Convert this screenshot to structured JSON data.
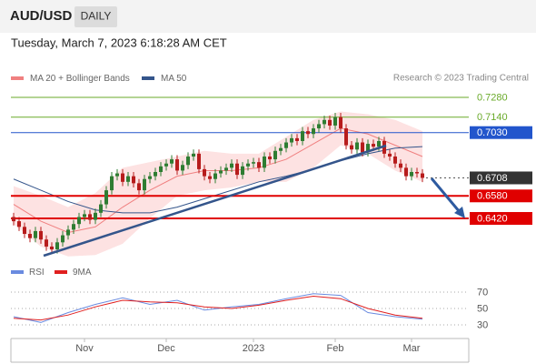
{
  "header": {
    "symbol": "AUD/USD",
    "timeframe": "DAILY",
    "timestamp": "Tuesday, March 7, 2023 6:18:28 AM CET"
  },
  "chart_data": [
    {
      "type": "candlestick",
      "credit": "Research © 2023 Trading Central",
      "xlim": [
        -0.5,
        83.5
      ],
      "ylim": [
        0.6142,
        0.7345
      ],
      "candles": {
        "up_color": "#2e7d32",
        "down_color": "#b71c1c",
        "open": [
          0.643,
          0.64,
          0.636,
          0.631,
          0.628,
          0.633,
          0.627,
          0.622,
          0.62,
          0.625,
          0.63,
          0.634,
          0.638,
          0.643,
          0.645,
          0.641,
          0.646,
          0.652,
          0.662,
          0.672,
          0.674,
          0.668,
          0.672,
          0.667,
          0.662,
          0.67,
          0.672,
          0.675,
          0.679,
          0.681,
          0.684,
          0.676,
          0.68,
          0.686,
          0.688,
          0.677,
          0.672,
          0.67,
          0.674,
          0.676,
          0.678,
          0.681,
          0.673,
          0.679,
          0.681,
          0.682,
          0.678,
          0.686,
          0.684,
          0.69,
          0.692,
          0.696,
          0.699,
          0.697,
          0.704,
          0.702,
          0.706,
          0.709,
          0.712,
          0.708,
          0.714,
          0.706,
          0.694,
          0.691,
          0.696,
          0.689,
          0.695,
          0.693,
          0.697,
          0.688,
          0.686,
          0.681,
          0.678,
          0.672,
          0.675,
          0.674
        ],
        "high": [
          0.646,
          0.643,
          0.639,
          0.634,
          0.636,
          0.636,
          0.63,
          0.625,
          0.628,
          0.633,
          0.637,
          0.641,
          0.646,
          0.648,
          0.648,
          0.649,
          0.655,
          0.665,
          0.675,
          0.677,
          0.677,
          0.675,
          0.675,
          0.67,
          0.673,
          0.675,
          0.678,
          0.682,
          0.684,
          0.687,
          0.687,
          0.683,
          0.689,
          0.691,
          0.691,
          0.68,
          0.675,
          0.677,
          0.679,
          0.681,
          0.684,
          0.684,
          0.682,
          0.684,
          0.685,
          0.685,
          0.689,
          0.689,
          0.693,
          0.695,
          0.699,
          0.702,
          0.702,
          0.707,
          0.707,
          0.709,
          0.712,
          0.715,
          0.715,
          0.717,
          0.717,
          0.709,
          0.697,
          0.699,
          0.699,
          0.698,
          0.698,
          0.7,
          0.7,
          0.691,
          0.689,
          0.684,
          0.681,
          0.678,
          0.678,
          0.677
        ],
        "low": [
          0.637,
          0.633,
          0.628,
          0.625,
          0.625,
          0.624,
          0.619,
          0.617,
          0.617,
          0.622,
          0.627,
          0.631,
          0.635,
          0.64,
          0.638,
          0.638,
          0.643,
          0.649,
          0.659,
          0.669,
          0.665,
          0.665,
          0.664,
          0.659,
          0.659,
          0.667,
          0.669,
          0.672,
          0.676,
          0.678,
          0.673,
          0.673,
          0.677,
          0.683,
          0.674,
          0.669,
          0.667,
          0.667,
          0.671,
          0.673,
          0.675,
          0.67,
          0.67,
          0.676,
          0.678,
          0.675,
          0.675,
          0.681,
          0.681,
          0.687,
          0.689,
          0.693,
          0.694,
          0.694,
          0.699,
          0.699,
          0.703,
          0.706,
          0.705,
          0.705,
          0.703,
          0.691,
          0.688,
          0.688,
          0.686,
          0.686,
          0.69,
          0.69,
          0.685,
          0.683,
          0.678,
          0.675,
          0.669,
          0.669,
          0.671,
          0.6678
        ],
        "close": [
          0.64,
          0.636,
          0.631,
          0.628,
          0.633,
          0.627,
          0.622,
          0.62,
          0.625,
          0.63,
          0.634,
          0.638,
          0.643,
          0.645,
          0.641,
          0.646,
          0.652,
          0.662,
          0.672,
          0.674,
          0.668,
          0.672,
          0.667,
          0.662,
          0.67,
          0.672,
          0.675,
          0.679,
          0.681,
          0.684,
          0.676,
          0.68,
          0.686,
          0.688,
          0.677,
          0.672,
          0.67,
          0.674,
          0.676,
          0.678,
          0.681,
          0.673,
          0.679,
          0.681,
          0.682,
          0.678,
          0.686,
          0.684,
          0.69,
          0.692,
          0.696,
          0.699,
          0.697,
          0.704,
          0.702,
          0.706,
          0.709,
          0.712,
          0.708,
          0.714,
          0.706,
          0.694,
          0.691,
          0.696,
          0.689,
          0.695,
          0.693,
          0.697,
          0.688,
          0.686,
          0.681,
          0.678,
          0.672,
          0.675,
          0.674,
          0.6708
        ]
      },
      "series": [
        {
          "name": "MA 20 + Bollinger Bands",
          "color": "#f08080",
          "band_color": "#fde2e2",
          "x": [
            0,
            5,
            10,
            15,
            20,
            25,
            30,
            35,
            40,
            45,
            50,
            55,
            60,
            65,
            70,
            75
          ],
          "values": [
            0.652,
            0.64,
            0.632,
            0.636,
            0.65,
            0.662,
            0.672,
            0.676,
            0.676,
            0.678,
            0.684,
            0.695,
            0.706,
            0.702,
            0.694,
            0.686
          ],
          "upper": [
            0.665,
            0.658,
            0.65,
            0.66,
            0.678,
            0.682,
            0.686,
            0.69,
            0.688,
            0.688,
            0.7,
            0.712,
            0.718,
            0.716,
            0.712,
            0.704
          ],
          "lower": [
            0.638,
            0.622,
            0.615,
            0.616,
            0.624,
            0.642,
            0.658,
            0.662,
            0.664,
            0.668,
            0.668,
            0.678,
            0.694,
            0.688,
            0.676,
            0.668
          ]
        },
        {
          "name": "MA 50",
          "color": "#34558b",
          "x": [
            0,
            5,
            10,
            15,
            20,
            25,
            30,
            35,
            40,
            45,
            50,
            55,
            60,
            65,
            70,
            75
          ],
          "values": [
            0.67,
            0.662,
            0.654,
            0.648,
            0.646,
            0.646,
            0.65,
            0.656,
            0.662,
            0.668,
            0.672,
            0.677,
            0.683,
            0.688,
            0.692,
            0.693
          ]
        }
      ],
      "levels": [
        {
          "value": 0.728,
          "label": "0.7280",
          "color": "#6aaa2a",
          "style": "text"
        },
        {
          "value": 0.714,
          "label": "0.7140",
          "color": "#6aaa2a",
          "style": "text"
        },
        {
          "value": 0.703,
          "label": "0.7030",
          "color": "#2255cc",
          "style": "box"
        },
        {
          "value": 0.6708,
          "label": "0.6708",
          "color": "#333333",
          "style": "current"
        },
        {
          "value": 0.658,
          "label": "0.6580",
          "color": "#e00000",
          "style": "box"
        },
        {
          "value": 0.642,
          "label": "0.6420",
          "color": "#e00000",
          "style": "box"
        }
      ]
    },
    {
      "type": "line",
      "xlim": [
        -0.5,
        83.5
      ],
      "ylim": [
        15,
        80
      ],
      "yticks": [
        30,
        50,
        70
      ],
      "xticks": [
        {
          "value": 13,
          "label": "Nov"
        },
        {
          "value": 28,
          "label": "Dec"
        },
        {
          "value": 44,
          "label": "2023"
        },
        {
          "value": 59,
          "label": "Feb"
        },
        {
          "value": 73,
          "label": "Mar"
        }
      ],
      "series": [
        {
          "name": "RSI",
          "color": "#6a8be0",
          "x": [
            0,
            5,
            10,
            15,
            20,
            25,
            30,
            35,
            40,
            45,
            50,
            55,
            60,
            65,
            70,
            75
          ],
          "values": [
            40,
            33,
            45,
            55,
            63,
            55,
            60,
            48,
            52,
            55,
            62,
            68,
            66,
            45,
            40,
            37
          ]
        },
        {
          "name": "9MA",
          "color": "#e02020",
          "x": [
            0,
            5,
            10,
            15,
            20,
            25,
            30,
            35,
            40,
            45,
            50,
            55,
            60,
            65,
            70,
            75
          ],
          "values": [
            38,
            36,
            42,
            52,
            60,
            58,
            57,
            52,
            50,
            54,
            60,
            65,
            62,
            50,
            42,
            38
          ]
        }
      ]
    }
  ]
}
